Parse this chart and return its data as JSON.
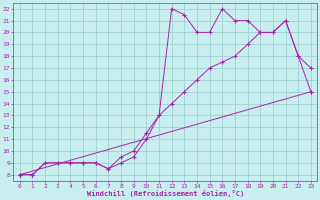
{
  "xlabel": "Windchill (Refroidissement éolien,°C)",
  "xlim": [
    -0.5,
    23.5
  ],
  "ylim": [
    7.5,
    22.5
  ],
  "xticks": [
    0,
    1,
    2,
    3,
    4,
    5,
    6,
    7,
    8,
    9,
    10,
    11,
    12,
    13,
    14,
    15,
    16,
    17,
    18,
    19,
    20,
    21,
    22,
    23
  ],
  "yticks": [
    8,
    9,
    10,
    11,
    12,
    13,
    14,
    15,
    16,
    17,
    18,
    19,
    20,
    21,
    22
  ],
  "bg_color": "#c8eef0",
  "line_color": "#aa22aa",
  "grid_color": "#99cccc",
  "line1_x": [
    0,
    1,
    2,
    3,
    4,
    5,
    6,
    7,
    8,
    9,
    10,
    11,
    12,
    13,
    14,
    15,
    16,
    17,
    18,
    19,
    20,
    21,
    22,
    23
  ],
  "line1_y": [
    8,
    8,
    9,
    9,
    9,
    9,
    9,
    8.5,
    9,
    9.5,
    11,
    13,
    22,
    21.5,
    20,
    20,
    22,
    21,
    21,
    20,
    20,
    21,
    18,
    17
  ],
  "line2_x": [
    0,
    1,
    2,
    3,
    4,
    5,
    6,
    7,
    8,
    9,
    10,
    11,
    12,
    13,
    14,
    15,
    16,
    17,
    18,
    19,
    20,
    21,
    22,
    23
  ],
  "line2_y": [
    8,
    8,
    9,
    9,
    9,
    9,
    9,
    8.5,
    9.5,
    10,
    11.5,
    13,
    14,
    15,
    16,
    17,
    17.5,
    18,
    19,
    20,
    20,
    21,
    18,
    15
  ],
  "line3_x": [
    0,
    23
  ],
  "line3_y": [
    8,
    15
  ]
}
